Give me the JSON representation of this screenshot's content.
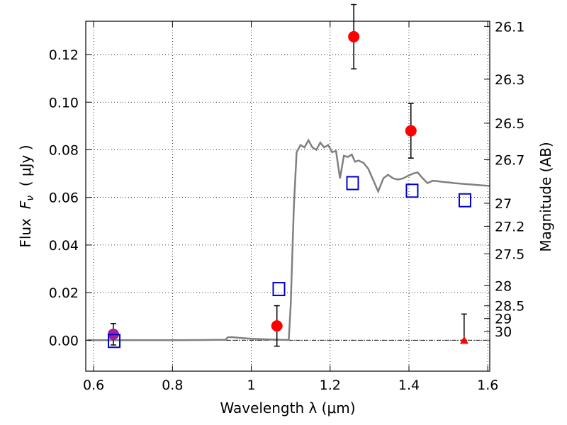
{
  "chart_data": {
    "type": "scatter",
    "xlabel": "Wavelength  λ (μm)",
    "ylabel_left": {
      "prefix": "Flux  ",
      "symbol_main": "F",
      "symbol_sub": "ν",
      "suffix": "  ( μJy )"
    },
    "ylabel_right": "Magnitude (AB)",
    "xlim": [
      0.58,
      1.605
    ],
    "ylim": [
      -0.013,
      0.134
    ],
    "grid": true,
    "x_ticks": [
      {
        "value": 0.6,
        "label": "0.6"
      },
      {
        "value": 0.8,
        "label": "0.8"
      },
      {
        "value": 1.0,
        "label": "1"
      },
      {
        "value": 1.2,
        "label": "1.2"
      },
      {
        "value": 1.4,
        "label": "1.4"
      },
      {
        "value": 1.6,
        "label": "1.6"
      }
    ],
    "y_ticks": [
      {
        "value": 0.0,
        "label": "0.00"
      },
      {
        "value": 0.02,
        "label": "0.02"
      },
      {
        "value": 0.04,
        "label": "0.04"
      },
      {
        "value": 0.06,
        "label": "0.06"
      },
      {
        "value": 0.08,
        "label": "0.08"
      },
      {
        "value": 0.1,
        "label": "0.10"
      },
      {
        "value": 0.12,
        "label": "0.12"
      }
    ],
    "mag_ticks": [
      {
        "value": 26.1,
        "label": "26.1"
      },
      {
        "value": 26.3,
        "label": "26.3"
      },
      {
        "value": 26.5,
        "label": "26.5"
      },
      {
        "value": 26.7,
        "label": "26.7"
      },
      {
        "value": 27.0,
        "label": "27"
      },
      {
        "value": 27.2,
        "label": "27.2"
      },
      {
        "value": 27.5,
        "label": "27.5"
      },
      {
        "value": 28.0,
        "label": "28"
      },
      {
        "value": 28.5,
        "label": "28.5"
      },
      {
        "value": 29.0,
        "label": "29"
      },
      {
        "value": 30.0,
        "label": "30"
      }
    ],
    "model_color": "#808080",
    "model_spectrum": {
      "x": [
        0.585,
        0.7,
        0.8,
        0.88,
        0.935,
        0.94,
        0.95,
        0.97,
        1.0,
        1.05,
        1.095,
        1.1,
        1.108,
        1.115,
        1.125,
        1.135,
        1.145,
        1.155,
        1.165,
        1.175,
        1.185,
        1.195,
        1.205,
        1.215,
        1.225,
        1.235,
        1.245,
        1.255,
        1.263,
        1.272,
        1.285,
        1.297,
        1.31,
        1.322,
        1.335,
        1.347,
        1.36,
        1.372,
        1.385,
        1.397,
        1.41,
        1.422,
        1.435,
        1.447,
        1.46,
        1.472,
        1.485,
        1.5,
        1.515,
        1.53,
        1.545,
        1.56,
        1.575,
        1.59,
        1.605
      ],
      "y": [
        0.0,
        0.0,
        0.0,
        0.0001,
        0.0002,
        0.0012,
        0.0013,
        0.001,
        0.0006,
        0.0003,
        0.0001,
        0.015,
        0.056,
        0.079,
        0.082,
        0.081,
        0.084,
        0.081,
        0.08,
        0.083,
        0.081,
        0.082,
        0.079,
        0.0795,
        0.068,
        0.0775,
        0.077,
        0.078,
        0.075,
        0.0755,
        0.0745,
        0.072,
        0.067,
        0.0625,
        0.068,
        0.0695,
        0.068,
        0.0675,
        0.068,
        0.069,
        0.07,
        0.0705,
        0.068,
        0.066,
        0.067,
        0.0668,
        0.0665,
        0.0663,
        0.066,
        0.0658,
        0.0656,
        0.0654,
        0.0652,
        0.065,
        0.0648
      ]
    },
    "series": [
      {
        "marker": "circle",
        "color": "#ff0000",
        "points": [
          {
            "x": 1.065,
            "y": 0.006,
            "err": 0.0085
          },
          {
            "x": 1.26,
            "y": 0.1275,
            "err": 0.0135
          },
          {
            "x": 1.405,
            "y": 0.088,
            "err": 0.0115
          }
        ]
      },
      {
        "marker": "circle",
        "color": "#a020a0",
        "points": [
          {
            "x": 0.65,
            "y": 0.0025,
            "err": 0.0045
          }
        ]
      },
      {
        "marker": "triangle",
        "color": "#ff0000",
        "points": [
          {
            "x": 1.54,
            "y": 0.0,
            "err_up": 0.011
          }
        ]
      },
      {
        "marker": "open-square",
        "color": "#0000cc",
        "points": [
          {
            "x": 0.652,
            "y": -0.0003
          },
          {
            "x": 1.07,
            "y": 0.0215
          },
          {
            "x": 1.257,
            "y": 0.066
          },
          {
            "x": 1.408,
            "y": 0.0628
          },
          {
            "x": 1.542,
            "y": 0.0588
          }
        ]
      }
    ]
  }
}
